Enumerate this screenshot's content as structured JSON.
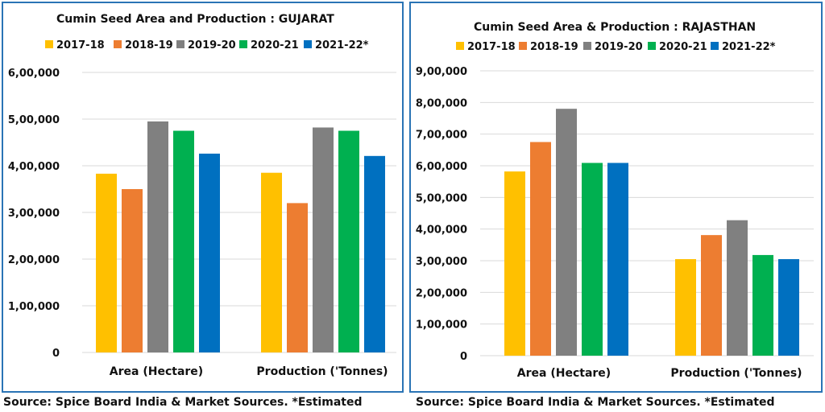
{
  "chart_data": [
    {
      "type": "bar",
      "title": "Cumin Seed Area and Production : GUJARAT",
      "categories": [
        "Area (Hectare)",
        "Production ('Tonnes)"
      ],
      "series": [
        {
          "name": "2017-18",
          "values": [
            383000,
            385000
          ]
        },
        {
          "name": "2018-19",
          "values": [
            350000,
            320000
          ]
        },
        {
          "name": "2019-20",
          "values": [
            495000,
            482000
          ]
        },
        {
          "name": "2020-21",
          "values": [
            475000,
            475000
          ]
        },
        {
          "name": "2021-22*",
          "values": [
            426000,
            421000
          ]
        }
      ],
      "ylim": [
        0,
        600000
      ],
      "yticks": [
        "0",
        "1,00,000",
        "2,00,000",
        "3,00,000",
        "4,00,000",
        "5,00,000",
        "6,00,000"
      ],
      "grid": true,
      "legend": "top"
    },
    {
      "type": "bar",
      "title": "Cumin Seed Area & Production : RAJASTHAN",
      "categories": [
        "Area (Hectare)",
        "Production ('Tonnes)"
      ],
      "series": [
        {
          "name": "2017-18",
          "values": [
            582000,
            305000
          ]
        },
        {
          "name": "2018-19",
          "values": [
            675000,
            381000
          ]
        },
        {
          "name": "2019-20",
          "values": [
            780000,
            428000
          ]
        },
        {
          "name": "2020-21",
          "values": [
            609000,
            318000
          ]
        },
        {
          "name": "2021-22*",
          "values": [
            609000,
            305000
          ]
        }
      ],
      "ylim": [
        0,
        900000
      ],
      "yticks": [
        "0",
        "1,00,000",
        "2,00,000",
        "3,00,000",
        "4,00,000",
        "5,00,000",
        "6,00,000",
        "7,00,000",
        "8,00,000",
        "9,00,000"
      ],
      "grid": true,
      "legend": "top"
    }
  ],
  "colors": [
    "#ffc000",
    "#ed7d31",
    "#808080",
    "#00b050",
    "#0070c0"
  ],
  "sources": [
    "Source: Spice Board India & Market Sources. *Estimated",
    "Source: Spice Board India & Market Sources. *Estimated"
  ]
}
